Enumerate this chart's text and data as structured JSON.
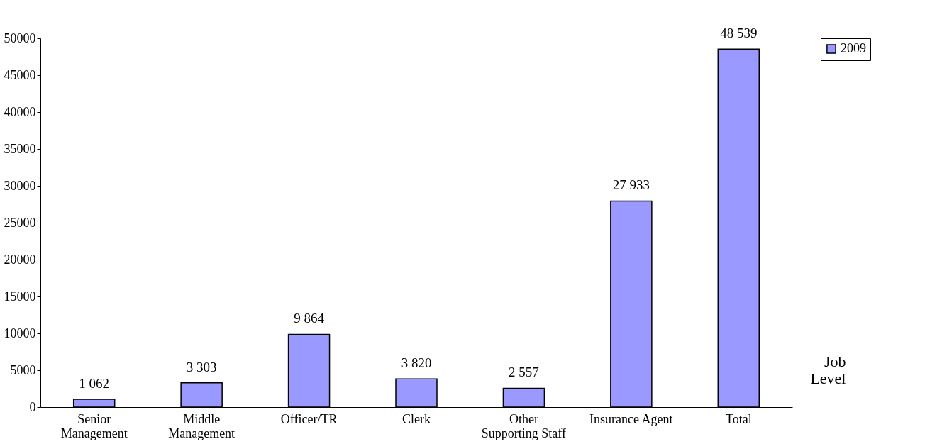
{
  "chart_data": {
    "type": "bar",
    "xlabel": "Job Level",
    "categories": [
      "Senior Management",
      "Middle Management",
      "Officer/TR",
      "Clerk",
      "Other Supporting Staff",
      "Insurance Agent",
      "Total"
    ],
    "series": [
      {
        "name": "2009",
        "color": "#9999ff",
        "values": [
          1062,
          3303,
          9864,
          3820,
          2557,
          27933,
          48539
        ],
        "value_labels": [
          "1 062",
          "3 303",
          "9 864",
          "3 820",
          "2 557",
          "27 933",
          "48 539"
        ]
      }
    ],
    "ylim": [
      0,
      50000
    ],
    "yticks": [
      0,
      5000,
      10000,
      15000,
      20000,
      25000,
      30000,
      35000,
      40000,
      45000,
      50000
    ],
    "grid": false,
    "legend": "right"
  }
}
